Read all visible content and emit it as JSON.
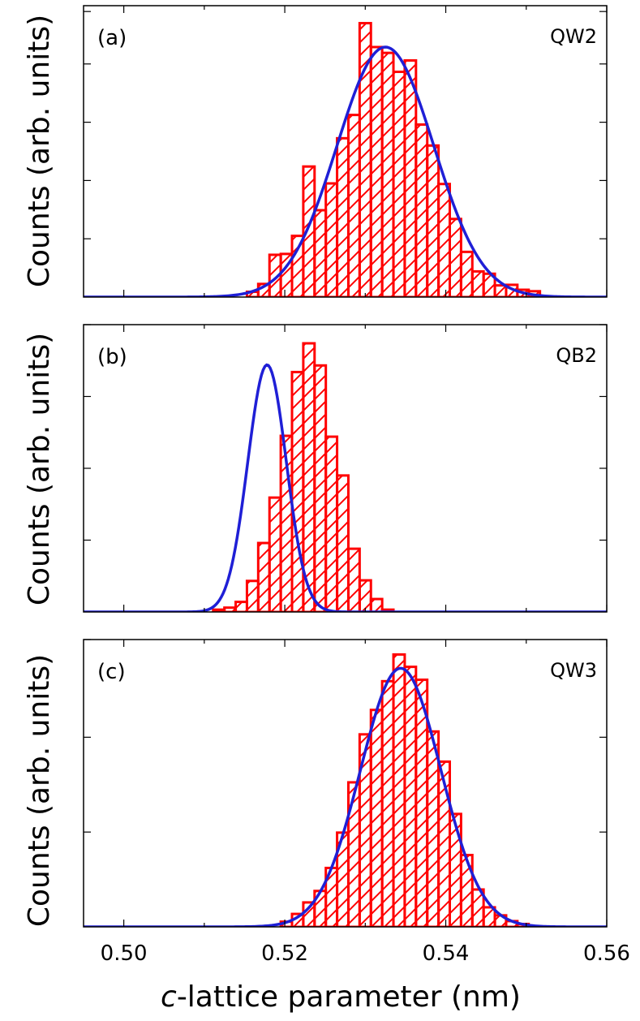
{
  "figure": {
    "xlabel_italic": "c",
    "xlabel_rest": "-lattice parameter (nm)",
    "ylabel": "Counts (arb. units)",
    "xticks": [
      "0.50",
      "0.52",
      "0.54",
      "0.56"
    ]
  },
  "colors": {
    "histogram": "#ff0000",
    "fit": "#1f1fd6",
    "axes": "#000000"
  },
  "chart_data": [
    {
      "type": "bar",
      "panel": "(a)",
      "label": "QW2",
      "xlim": [
        0.495,
        0.56
      ],
      "ylim": [
        0,
        1.0
      ],
      "bin_width": 0.0014,
      "bins": [
        {
          "x": 0.516,
          "v": 0.018
        },
        {
          "x": 0.5174,
          "v": 0.045
        },
        {
          "x": 0.5188,
          "v": 0.145
        },
        {
          "x": 0.5202,
          "v": 0.148
        },
        {
          "x": 0.5216,
          "v": 0.21
        },
        {
          "x": 0.523,
          "v": 0.448
        },
        {
          "x": 0.5244,
          "v": 0.298
        },
        {
          "x": 0.5258,
          "v": 0.39
        },
        {
          "x": 0.5272,
          "v": 0.545
        },
        {
          "x": 0.5286,
          "v": 0.625
        },
        {
          "x": 0.53,
          "v": 0.94
        },
        {
          "x": 0.5314,
          "v": 0.858
        },
        {
          "x": 0.5328,
          "v": 0.838
        },
        {
          "x": 0.5342,
          "v": 0.773
        },
        {
          "x": 0.5356,
          "v": 0.812
        },
        {
          "x": 0.537,
          "v": 0.592
        },
        {
          "x": 0.5384,
          "v": 0.52
        },
        {
          "x": 0.5398,
          "v": 0.388
        },
        {
          "x": 0.5412,
          "v": 0.268
        },
        {
          "x": 0.5426,
          "v": 0.155
        },
        {
          "x": 0.544,
          "v": 0.088
        },
        {
          "x": 0.5454,
          "v": 0.08
        },
        {
          "x": 0.5468,
          "v": 0.04
        },
        {
          "x": 0.5482,
          "v": 0.042
        },
        {
          "x": 0.5496,
          "v": 0.025
        },
        {
          "x": 0.551,
          "v": 0.02
        }
      ],
      "fit": {
        "mu": 0.5325,
        "sigma": 0.006,
        "amp": 0.858
      },
      "yticks": [
        0.2,
        0.4,
        0.6,
        0.8,
        0.98
      ]
    },
    {
      "type": "bar",
      "panel": "(b)",
      "label": "QB2",
      "xlim": [
        0.495,
        0.56
      ],
      "ylim": [
        0,
        1.0
      ],
      "bin_width": 0.0014,
      "bins": [
        {
          "x": 0.5118,
          "v": 0.008
        },
        {
          "x": 0.5132,
          "v": 0.015
        },
        {
          "x": 0.5146,
          "v": 0.035
        },
        {
          "x": 0.516,
          "v": 0.108
        },
        {
          "x": 0.5174,
          "v": 0.24
        },
        {
          "x": 0.5188,
          "v": 0.398
        },
        {
          "x": 0.5202,
          "v": 0.613
        },
        {
          "x": 0.5216,
          "v": 0.835
        },
        {
          "x": 0.523,
          "v": 0.935
        },
        {
          "x": 0.5244,
          "v": 0.858
        },
        {
          "x": 0.5258,
          "v": 0.61
        },
        {
          "x": 0.5272,
          "v": 0.475
        },
        {
          "x": 0.5286,
          "v": 0.22
        },
        {
          "x": 0.53,
          "v": 0.11
        },
        {
          "x": 0.5314,
          "v": 0.045
        },
        {
          "x": 0.5328,
          "v": 0.008
        }
      ],
      "fit": {
        "mu": 0.5178,
        "sigma": 0.0024,
        "amp": 0.86
      },
      "yticks": [
        0.25,
        0.5,
        0.75,
        1.0
      ]
    },
    {
      "type": "bar",
      "panel": "(c)",
      "label": "QW3",
      "xlim": [
        0.495,
        0.56
      ],
      "ylim": [
        0,
        1.0
      ],
      "bin_width": 0.0014,
      "bins": [
        {
          "x": 0.5202,
          "v": 0.018
        },
        {
          "x": 0.5216,
          "v": 0.045
        },
        {
          "x": 0.523,
          "v": 0.085
        },
        {
          "x": 0.5244,
          "v": 0.125
        },
        {
          "x": 0.5258,
          "v": 0.205
        },
        {
          "x": 0.5272,
          "v": 0.328
        },
        {
          "x": 0.5286,
          "v": 0.503
        },
        {
          "x": 0.53,
          "v": 0.67
        },
        {
          "x": 0.5314,
          "v": 0.755
        },
        {
          "x": 0.5328,
          "v": 0.855
        },
        {
          "x": 0.5342,
          "v": 0.948
        },
        {
          "x": 0.5356,
          "v": 0.905
        },
        {
          "x": 0.537,
          "v": 0.86
        },
        {
          "x": 0.5384,
          "v": 0.68
        },
        {
          "x": 0.5398,
          "v": 0.575
        },
        {
          "x": 0.5412,
          "v": 0.393
        },
        {
          "x": 0.5426,
          "v": 0.25
        },
        {
          "x": 0.544,
          "v": 0.13
        },
        {
          "x": 0.5454,
          "v": 0.068
        },
        {
          "x": 0.5468,
          "v": 0.04
        },
        {
          "x": 0.5482,
          "v": 0.02
        },
        {
          "x": 0.5496,
          "v": 0.01
        }
      ],
      "fit": {
        "mu": 0.5344,
        "sigma": 0.005,
        "amp": 0.9
      },
      "yticks": [
        0.33,
        0.66,
        1.0
      ]
    }
  ]
}
